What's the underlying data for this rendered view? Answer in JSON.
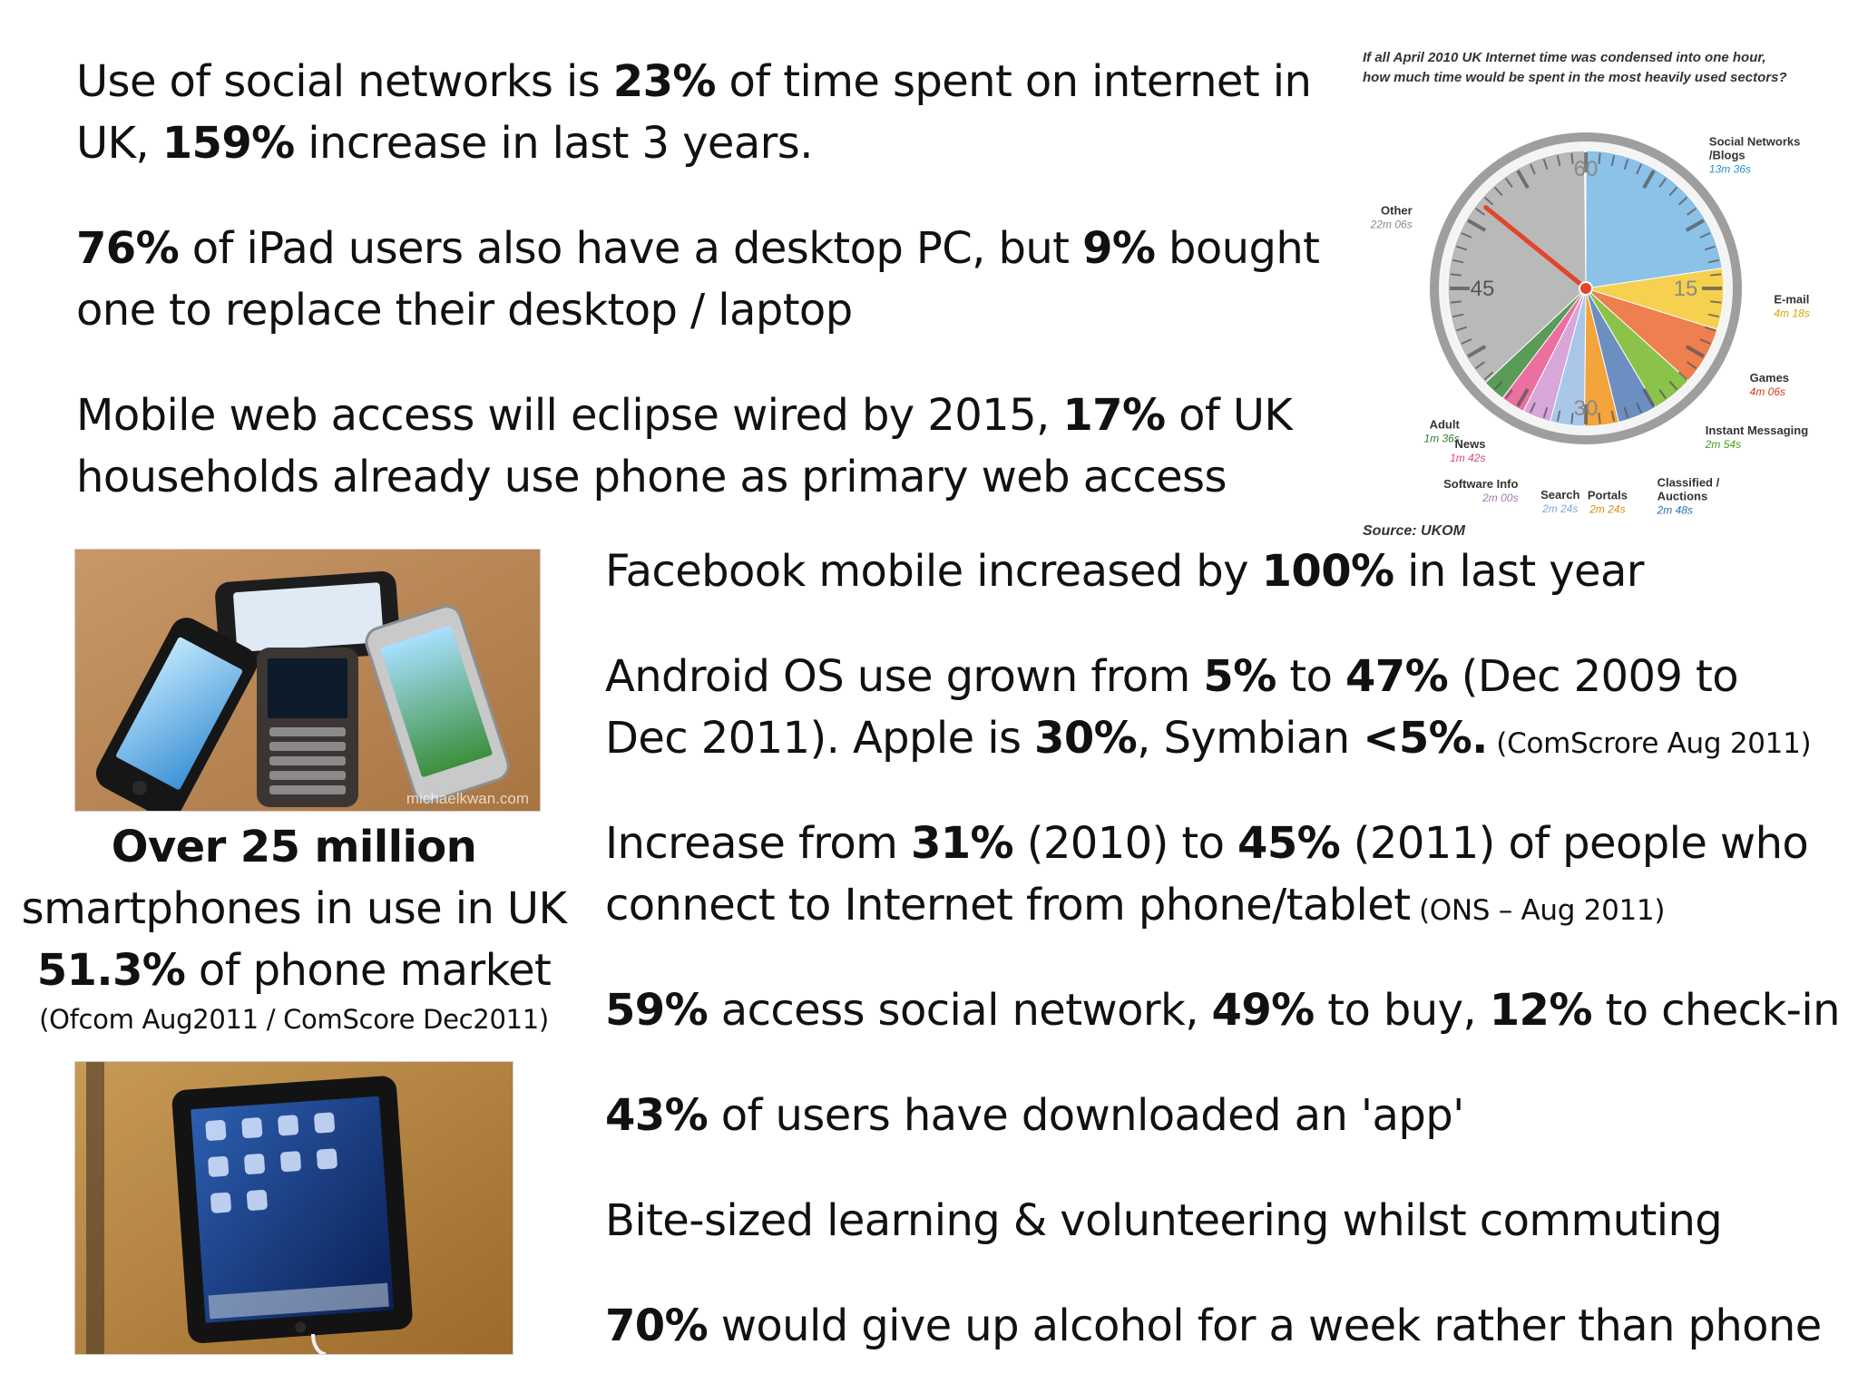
{
  "facts": {
    "social_networks": {
      "t1": "Use of social networks is ",
      "b1": "23%",
      "t2": " of time spent on internet in UK, ",
      "b2": "159%",
      "t3": " increase in last 3 years."
    },
    "ipad": {
      "b1": "76%",
      "t1": " of iPad users also have a desktop PC, but ",
      "b2": "9%",
      "t2": " bought one to replace their desktop / laptop"
    },
    "mobile_web": {
      "t1": "Mobile web access will eclipse wired by 2015, ",
      "b1": "17%",
      "t2": " of UK households already use phone as primary web access"
    },
    "facebook": {
      "t1": "Facebook mobile increased by ",
      "b1": "100%",
      "t2": " in last year"
    },
    "android": {
      "t1": "Android OS use grown from ",
      "b1": "5%",
      "t2": " to ",
      "b2": "47%",
      "t3": " (Dec 2009 to Dec 2011). Apple is ",
      "b3": "30%",
      "t4": ", Symbian ",
      "b4": "<5%.",
      "note": " (ComScrore Aug 2011)"
    },
    "increase": {
      "t1": "Increase from ",
      "b1": "31%",
      "t2": " (2010) to ",
      "b2": "45%",
      "t3": " (2011) of people who connect to Internet from phone/tablet",
      "note": " (ONS – Aug 2011)"
    },
    "access": {
      "b1": "59%",
      "t1": " access social network, ",
      "b2": "49%",
      "t2": " to buy, ",
      "b3": "12%",
      "t3": " to check-in"
    },
    "app": {
      "b1": "43%",
      "t1": " of users have downloaded an 'app'"
    },
    "bite_sized": {
      "t1": "Bite-sized learning & volunteering whilst commuting"
    },
    "alcohol": {
      "b1": "70%",
      "t1": " would give up alcohol for a week rather than phone"
    }
  },
  "smartphones": {
    "line1": "Over 25 million",
    "line2": "smartphones in use in UK",
    "line3_bold": "51.3%",
    "line3_rest": " of phone market",
    "source": "(Ofcom Aug2011 / ComScore Dec2011)"
  },
  "photos": {
    "phones_watermark": "michaelkwan.com"
  },
  "clock_chart": {
    "title_line1": "If all April 2010 UK Internet time was condensed into one hour,",
    "title_line2": "how much time would be spent in the most heavily used sectors?",
    "source": "Source: UKOM",
    "dial_numbers": [
      "60",
      "15",
      "30",
      "45"
    ]
  },
  "chart_data": {
    "type": "pie",
    "title": "If all April 2010 UK Internet time was condensed into one hour, how much time would be spent in the most heavily used sectors?",
    "unit": "minutes of one hour",
    "categories": [
      "Social Networks /Blogs",
      "E-mail",
      "Games",
      "Instant Messaging",
      "Classified / Auctions",
      "Portals",
      "Search",
      "Software Info",
      "News",
      "Adult",
      "Other"
    ],
    "value_labels": [
      "13m 36s",
      "4m 18s",
      "4m 06s",
      "2m 54s",
      "2m 48s",
      "2m 24s",
      "2m 24s",
      "2m 00s",
      "1m 42s",
      "1m 36s",
      "22m 06s"
    ],
    "values": [
      13.6,
      4.3,
      4.1,
      2.9,
      2.8,
      2.4,
      2.4,
      2.0,
      1.7,
      1.6,
      22.1
    ],
    "colors": [
      "#8cc1e8",
      "#f6d150",
      "#ee7f4f",
      "#8bc34a",
      "#6c8fc2",
      "#f3a43a",
      "#a9c8e9",
      "#d8a6d8",
      "#ec6fa0",
      "#5b9b5a",
      "#b9b9b9"
    ],
    "label_colors": [
      "#2b8ecf",
      "#d6a400",
      "#d83a1a",
      "#4e9a1e",
      "#2c6db4",
      "#d98a12",
      "#7fa6d6",
      "#9a7ab8",
      "#d94a84",
      "#2e7d32",
      "#888888"
    ],
    "legend": "labels placed around dial",
    "source": "Source: UKOM"
  }
}
